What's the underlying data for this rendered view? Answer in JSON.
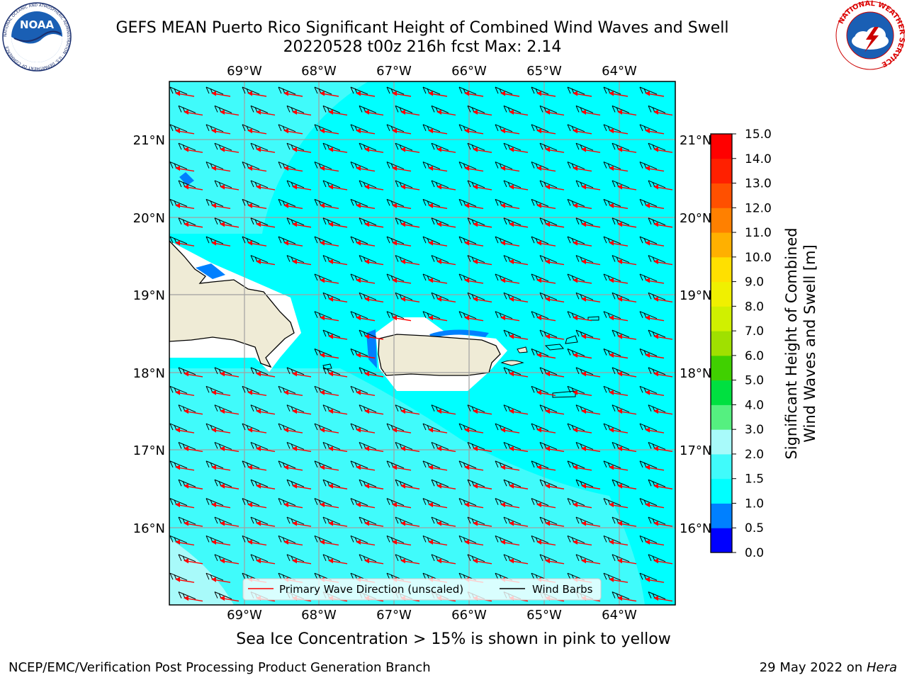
{
  "header": {
    "title_line1": "GEFS MEAN Puerto Rico Significant Height of Combined Wind Waves and Swell",
    "title_line2": "20220528 t00z 216h fcst   Max: 2.14"
  },
  "logos": {
    "noaa_text": "NOAA",
    "noaa_ring_text": "NATIONAL OCEANIC AND ATMOSPHERIC ADMINISTRATION · U.S. DEPARTMENT OF COMMERCE",
    "nws_ring_text": "NATIONAL WEATHER SERVICE"
  },
  "map": {
    "lon_labels": [
      "69°W",
      "68°W",
      "67°W",
      "66°W",
      "65°W",
      "64°W"
    ],
    "lat_labels": [
      "21°N",
      "20°N",
      "19°N",
      "18°N",
      "17°N",
      "16°N"
    ],
    "legend": {
      "wave_direction": "Primary Wave Direction (unscaled)",
      "wind_barbs": "Wind Barbs"
    },
    "colors": {
      "ocean_main": "#00ffff",
      "ocean_lighter": "#40fbfb",
      "ocean_light": "#a8fafa",
      "ocean_dark": "#0080ff",
      "land": "#efebd6",
      "arrow": "#ff0000"
    }
  },
  "colorbar": {
    "label_line1": "Significant Height of Combined",
    "label_line2": "Wind Waves and Swell [m]",
    "ticks": [
      "0.0",
      "0.5",
      "1.0",
      "1.5",
      "2.0",
      "3.0",
      "4.0",
      "5.0",
      "6.0",
      "7.0",
      "8.0",
      "9.0",
      "10.0",
      "11.0",
      "12.0",
      "13.0",
      "14.0",
      "15.0"
    ],
    "colors": [
      "#0000ff",
      "#0080ff",
      "#00ffff",
      "#40fbfb",
      "#a8fafa",
      "#55f080",
      "#00e040",
      "#40d000",
      "#a0e000",
      "#d0f000",
      "#f0f000",
      "#ffe000",
      "#ffb000",
      "#ff8000",
      "#ff5000",
      "#ff2000",
      "#ff0000"
    ]
  },
  "note": "Sea Ice Concentration > 15% is shown in pink to yellow",
  "footer": {
    "left": "NCEP/EMC/Verification Post Processing Product Generation Branch",
    "right_date": "29 May 2022 on ",
    "right_host": "Hera"
  }
}
